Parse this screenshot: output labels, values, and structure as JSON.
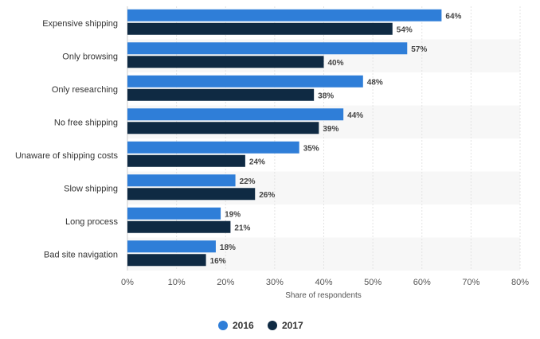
{
  "chart_data": {
    "type": "bar",
    "orientation": "horizontal",
    "categories": [
      "Expensive shipping",
      "Only browsing",
      "Only researching",
      "No free shipping",
      "Unaware of shipping costs",
      "Slow shipping",
      "Long process",
      "Bad site navigation"
    ],
    "series": [
      {
        "name": "2016",
        "color": "#2f7ed8",
        "values": [
          64,
          57,
          48,
          44,
          35,
          22,
          19,
          18
        ]
      },
      {
        "name": "2017",
        "color": "#0f2a43",
        "values": [
          54,
          40,
          38,
          39,
          24,
          26,
          21,
          16
        ]
      }
    ],
    "xlabel": "Share of respondents",
    "xlim": [
      0,
      80
    ],
    "xticks": [
      "0%",
      "10%",
      "20%",
      "30%",
      "40%",
      "50%",
      "60%",
      "70%",
      "80%"
    ],
    "value_suffix": "%",
    "grid": true,
    "legend_position": "bottom-center"
  }
}
